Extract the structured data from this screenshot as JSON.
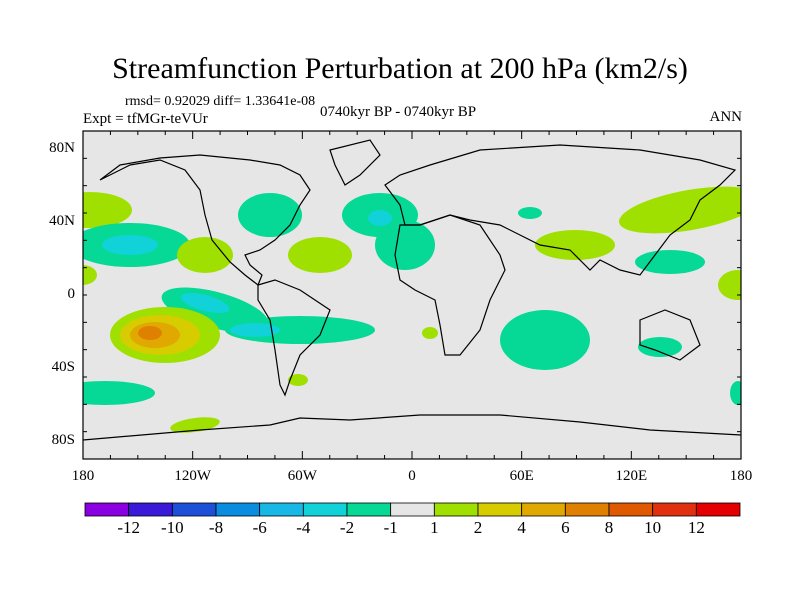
{
  "title": "Streamfunction Perturbation at 200 hPa (km2/s)",
  "stats": "rmsd= 0.92029 diff= 1.33641e-08",
  "experiment": "Expt = tfMGr-teVUr",
  "period": "0740kyr BP - 0740kyr BP",
  "season": "ANN",
  "chart_data": {
    "type": "heatmap",
    "projection": "cylindrical-equidistant",
    "lon_range": [
      -180,
      180
    ],
    "lat_range": [
      -90,
      90
    ],
    "x_ticks": [
      "180",
      "120W",
      "60W",
      "0",
      "60E",
      "120E",
      "180"
    ],
    "y_ticks": [
      "80N",
      "40N",
      "0",
      "40S",
      "80S"
    ],
    "colorbar": {
      "labels": [
        "-12",
        "-10",
        "-8",
        "-6",
        "-4",
        "-2",
        "-1",
        "1",
        "2",
        "4",
        "6",
        "8",
        "10",
        "12"
      ],
      "colors": [
        "#8a00e0",
        "#3a1ad8",
        "#1c50d8",
        "#0a8ce0",
        "#18b8e6",
        "#10d2d8",
        "#06d895",
        "#e6e6e6",
        "#a0e000",
        "#d6cc00",
        "#e0a800",
        "#e08000",
        "#e05800",
        "#e03010",
        "#e40000"
      ]
    }
  }
}
